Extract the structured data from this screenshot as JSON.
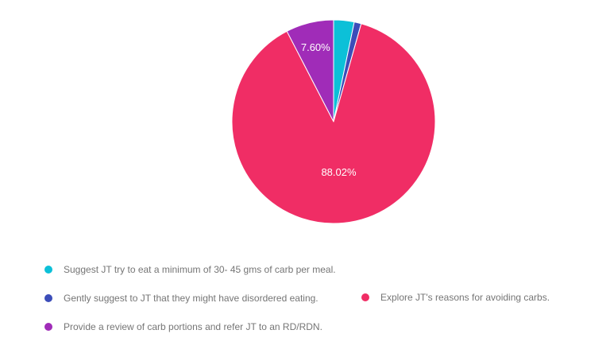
{
  "chart_data": {
    "type": "pie",
    "title": "",
    "legend_position": "bottom",
    "start_angle_deg": 0,
    "direction": "clockwise",
    "background_color": "#ffffff",
    "slice_border_color": "#ffffff",
    "slice_label_color": "#ffffff",
    "legend_text_color": "#757575",
    "slices": [
      {
        "label": "Suggest JT try to eat a minimum of 30- 45 gms of carb per meal.",
        "value": 3.26,
        "display_label": "",
        "color": "#0cc0d8"
      },
      {
        "label": "Gently suggest to JT that they might have disordered eating.",
        "value": 1.12,
        "display_label": "",
        "color": "#3c4db9"
      },
      {
        "label": "Explore JT's reasons for avoiding carbs.",
        "value": 88.02,
        "display_label": "88.02%",
        "color": "#f02d65"
      },
      {
        "label": "Provide a review of carb portions and refer JT to an RD/RDN.",
        "value": 7.6,
        "display_label": "7.60%",
        "color": "#a02cb8"
      }
    ]
  }
}
